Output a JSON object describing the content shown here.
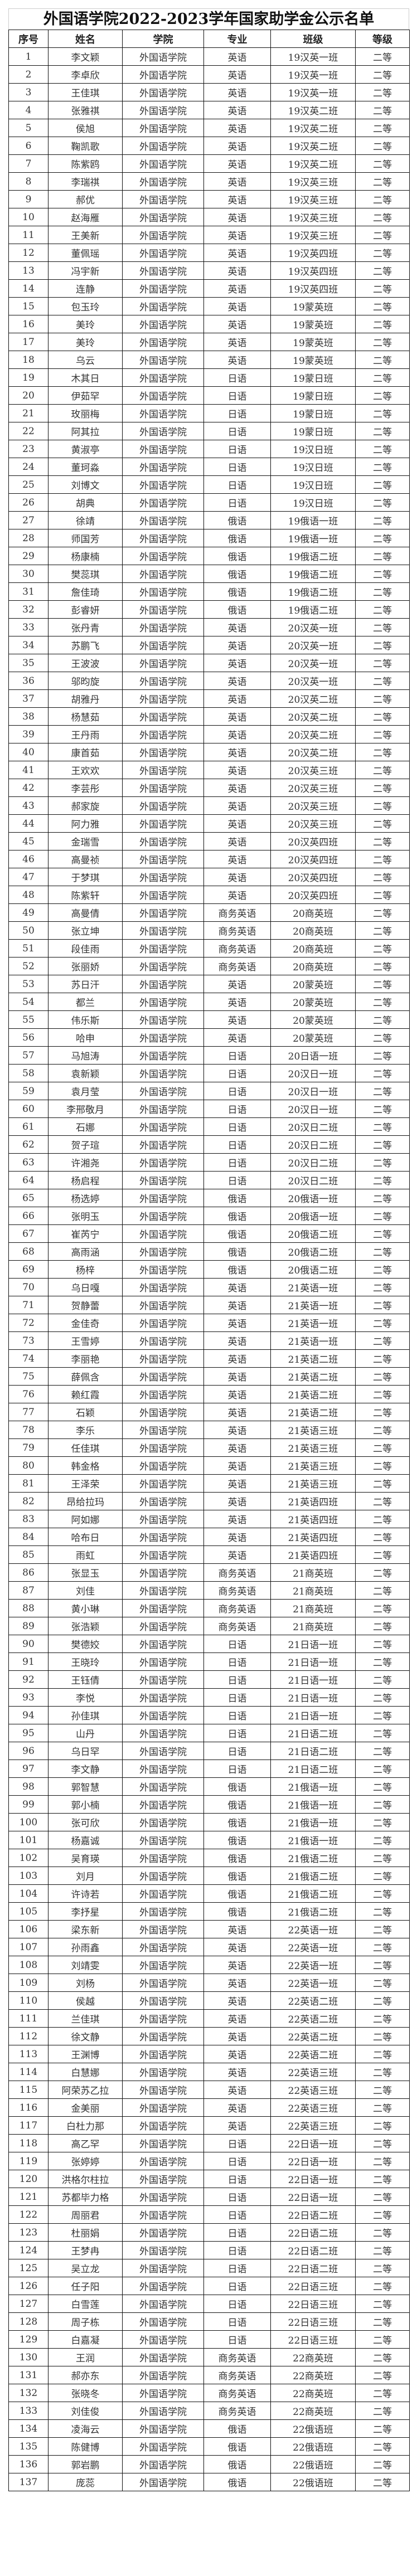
{
  "title": "外国语学院2022-2023学年国家助学金公示名单",
  "columns": [
    "序号",
    "姓名",
    "学院",
    "专业",
    "班级",
    "等级"
  ],
  "rows": [
    [
      "1",
      "李文颖",
      "外国语学院",
      "英语",
      "19汉英一班",
      "二等"
    ],
    [
      "2",
      "李卓欣",
      "外国语学院",
      "英语",
      "19汉英一班",
      "二等"
    ],
    [
      "3",
      "王佳琪",
      "外国语学院",
      "英语",
      "19汉英一班",
      "二等"
    ],
    [
      "4",
      "张雅祺",
      "外国语学院",
      "英语",
      "19汉英二班",
      "二等"
    ],
    [
      "5",
      "侯旭",
      "外国语学院",
      "英语",
      "19汉英二班",
      "二等"
    ],
    [
      "6",
      "鞠凯歌",
      "外国语学院",
      "英语",
      "19汉英二班",
      "二等"
    ],
    [
      "7",
      "陈紫鸥",
      "外国语学院",
      "英语",
      "19汉英二班",
      "二等"
    ],
    [
      "8",
      "李瑞祺",
      "外国语学院",
      "英语",
      "19汉英三班",
      "二等"
    ],
    [
      "9",
      "郝优",
      "外国语学院",
      "英语",
      "19汉英三班",
      "二等"
    ],
    [
      "10",
      "赵海雁",
      "外国语学院",
      "英语",
      "19汉英三班",
      "二等"
    ],
    [
      "11",
      "王美新",
      "外国语学院",
      "英语",
      "19汉英三班",
      "二等"
    ],
    [
      "12",
      "董佩瑶",
      "外国语学院",
      "英语",
      "19汉英四班",
      "二等"
    ],
    [
      "13",
      "冯宇新",
      "外国语学院",
      "英语",
      "19汉英四班",
      "二等"
    ],
    [
      "14",
      "连静",
      "外国语学院",
      "英语",
      "19汉英四班",
      "二等"
    ],
    [
      "15",
      "包玉玲",
      "外国语学院",
      "英语",
      "19蒙英班",
      "二等"
    ],
    [
      "16",
      "美玲",
      "外国语学院",
      "英语",
      "19蒙英班",
      "二等"
    ],
    [
      "17",
      "美玲",
      "外国语学院",
      "英语",
      "19蒙英班",
      "二等"
    ],
    [
      "18",
      "乌云",
      "外国语学院",
      "英语",
      "19蒙英班",
      "二等"
    ],
    [
      "19",
      "木其日",
      "外国语学院",
      "日语",
      "19蒙日班",
      "二等"
    ],
    [
      "20",
      "伊茹罕",
      "外国语学院",
      "日语",
      "19蒙日班",
      "二等"
    ],
    [
      "21",
      "玫丽梅",
      "外国语学院",
      "日语",
      "19蒙日班",
      "二等"
    ],
    [
      "22",
      "阿其拉",
      "外国语学院",
      "日语",
      "19蒙日班",
      "二等"
    ],
    [
      "23",
      "黄淑亭",
      "外国语学院",
      "日语",
      "19汉日班",
      "二等"
    ],
    [
      "24",
      "董珂淼",
      "外国语学院",
      "日语",
      "19汉日班",
      "二等"
    ],
    [
      "25",
      "刘博文",
      "外国语学院",
      "日语",
      "19汉日班",
      "二等"
    ],
    [
      "26",
      "胡典",
      "外国语学院",
      "日语",
      "19汉日班",
      "二等"
    ],
    [
      "27",
      "徐靖",
      "外国语学院",
      "俄语",
      "19俄语一班",
      "二等"
    ],
    [
      "28",
      "师国芳",
      "外国语学院",
      "俄语",
      "19俄语一班",
      "二等"
    ],
    [
      "29",
      "杨康楠",
      "外国语学院",
      "俄语",
      "19俄语二班",
      "二等"
    ],
    [
      "30",
      "樊蕊琪",
      "外国语学院",
      "俄语",
      "19俄语二班",
      "二等"
    ],
    [
      "31",
      "詹佳琦",
      "外国语学院",
      "俄语",
      "19俄语二班",
      "二等"
    ],
    [
      "32",
      "彭睿妍",
      "外国语学院",
      "俄语",
      "19俄语二班",
      "二等"
    ],
    [
      "33",
      "张丹青",
      "外国语学院",
      "英语",
      "20汉英一班",
      "二等"
    ],
    [
      "34",
      "苏鹏飞",
      "外国语学院",
      "英语",
      "20汉英一班",
      "二等"
    ],
    [
      "35",
      "王波波",
      "外国语学院",
      "英语",
      "20汉英一班",
      "二等"
    ],
    [
      "36",
      "邬昀旋",
      "外国语学院",
      "英语",
      "20汉英一班",
      "二等"
    ],
    [
      "37",
      "胡雅丹",
      "外国语学院",
      "英语",
      "20汉英二班",
      "二等"
    ],
    [
      "38",
      "杨慧茹",
      "外国语学院",
      "英语",
      "20汉英二班",
      "二等"
    ],
    [
      "39",
      "王丹雨",
      "外国语学院",
      "英语",
      "20汉英二班",
      "二等"
    ],
    [
      "40",
      "康首茹",
      "外国语学院",
      "英语",
      "20汉英二班",
      "二等"
    ],
    [
      "41",
      "王欢欢",
      "外国语学院",
      "英语",
      "20汉英三班",
      "二等"
    ],
    [
      "42",
      "李芸彤",
      "外国语学院",
      "英语",
      "20汉英三班",
      "二等"
    ],
    [
      "43",
      "郝家旋",
      "外国语学院",
      "英语",
      "20汉英三班",
      "二等"
    ],
    [
      "44",
      "阿力雅",
      "外国语学院",
      "英语",
      "20汉英三班",
      "二等"
    ],
    [
      "45",
      "金瑞雪",
      "外国语学院",
      "英语",
      "20汉英四班",
      "二等"
    ],
    [
      "46",
      "高曼祯",
      "外国语学院",
      "英语",
      "20汉英四班",
      "二等"
    ],
    [
      "47",
      "于梦琪",
      "外国语学院",
      "英语",
      "20汉英四班",
      "二等"
    ],
    [
      "48",
      "陈紫轩",
      "外国语学院",
      "英语",
      "20汉英四班",
      "二等"
    ],
    [
      "49",
      "高曼倩",
      "外国语学院",
      "商务英语",
      "20商英班",
      "二等"
    ],
    [
      "50",
      "张立坤",
      "外国语学院",
      "商务英语",
      "20商英班",
      "二等"
    ],
    [
      "51",
      "段佳雨",
      "外国语学院",
      "商务英语",
      "20商英班",
      "二等"
    ],
    [
      "52",
      "张丽娇",
      "外国语学院",
      "商务英语",
      "20商英班",
      "二等"
    ],
    [
      "53",
      "苏日汗",
      "外国语学院",
      "英语",
      "20蒙英班",
      "二等"
    ],
    [
      "54",
      "都兰",
      "外国语学院",
      "英语",
      "20蒙英班",
      "二等"
    ],
    [
      "55",
      "伟乐斯",
      "外国语学院",
      "英语",
      "20蒙英班",
      "二等"
    ],
    [
      "56",
      "哈申",
      "外国语学院",
      "英语",
      "20蒙英班",
      "二等"
    ],
    [
      "57",
      "马旭涛",
      "外国语学院",
      "日语",
      "20日语一班",
      "二等"
    ],
    [
      "58",
      "袁新颖",
      "外国语学院",
      "日语",
      "20汉日一班",
      "二等"
    ],
    [
      "59",
      "袁月莹",
      "外国语学院",
      "日语",
      "20汉日一班",
      "二等"
    ],
    [
      "60",
      "李邢敬月",
      "外国语学院",
      "日语",
      "20汉日一班",
      "二等"
    ],
    [
      "61",
      "石娜",
      "外国语学院",
      "日语",
      "20汉日二班",
      "二等"
    ],
    [
      "62",
      "贺子瑄",
      "外国语学院",
      "日语",
      "20汉日二班",
      "二等"
    ],
    [
      "63",
      "许湘尧",
      "外国语学院",
      "日语",
      "20汉日二班",
      "二等"
    ],
    [
      "64",
      "杨启程",
      "外国语学院",
      "日语",
      "20汉日二班",
      "二等"
    ],
    [
      "65",
      "杨选婷",
      "外国语学院",
      "俄语",
      "20俄语一班",
      "二等"
    ],
    [
      "66",
      "张明玉",
      "外国语学院",
      "俄语",
      "20俄语一班",
      "二等"
    ],
    [
      "67",
      "崔芮宁",
      "外国语学院",
      "俄语",
      "20俄语二班",
      "二等"
    ],
    [
      "68",
      "高雨涵",
      "外国语学院",
      "俄语",
      "20俄语二班",
      "二等"
    ],
    [
      "69",
      "杨梓",
      "外国语学院",
      "俄语",
      "20俄语二班",
      "二等"
    ],
    [
      "70",
      "乌日嘎",
      "外国语学院",
      "英语",
      "21英语一班",
      "二等"
    ],
    [
      "71",
      "贺静蕾",
      "外国语学院",
      "英语",
      "21英语一班",
      "二等"
    ],
    [
      "72",
      "金佳奇",
      "外国语学院",
      "英语",
      "21英语一班",
      "二等"
    ],
    [
      "73",
      "王雪婷",
      "外国语学院",
      "英语",
      "21英语一班",
      "二等"
    ],
    [
      "74",
      "李丽艳",
      "外国语学院",
      "英语",
      "21英语二班",
      "二等"
    ],
    [
      "75",
      "薛佩含",
      "外国语学院",
      "英语",
      "21英语二班",
      "二等"
    ],
    [
      "76",
      "赖红霞",
      "外国语学院",
      "英语",
      "21英语二班",
      "二等"
    ],
    [
      "77",
      "石颖",
      "外国语学院",
      "英语",
      "21英语二班",
      "二等"
    ],
    [
      "78",
      "李乐",
      "外国语学院",
      "英语",
      "21英语三班",
      "二等"
    ],
    [
      "79",
      "任佳琪",
      "外国语学院",
      "英语",
      "21英语三班",
      "二等"
    ],
    [
      "80",
      "韩金格",
      "外国语学院",
      "英语",
      "21英语三班",
      "二等"
    ],
    [
      "81",
      "王泽荣",
      "外国语学院",
      "英语",
      "21英语三班",
      "二等"
    ],
    [
      "82",
      "昂给拉玛",
      "外国语学院",
      "英语",
      "21英语四班",
      "二等"
    ],
    [
      "83",
      "阿如娜",
      "外国语学院",
      "英语",
      "21英语四班",
      "二等"
    ],
    [
      "84",
      "哈布日",
      "外国语学院",
      "英语",
      "21英语四班",
      "二等"
    ],
    [
      "85",
      "雨虹",
      "外国语学院",
      "英语",
      "21英语四班",
      "二等"
    ],
    [
      "86",
      "张显玉",
      "外国语学院",
      "商务英语",
      "21商英班",
      "二等"
    ],
    [
      "87",
      "刘佳",
      "外国语学院",
      "商务英语",
      "21商英班",
      "二等"
    ],
    [
      "88",
      "黄小琳",
      "外国语学院",
      "商务英语",
      "21商英班",
      "二等"
    ],
    [
      "89",
      "张浩颖",
      "外国语学院",
      "商务英语",
      "21商英班",
      "二等"
    ],
    [
      "90",
      "樊德姣",
      "外国语学院",
      "日语",
      "21日语一班",
      "二等"
    ],
    [
      "91",
      "王晓玲",
      "外国语学院",
      "日语",
      "21日语一班",
      "二等"
    ],
    [
      "92",
      "王钰倩",
      "外国语学院",
      "日语",
      "21日语一班",
      "二等"
    ],
    [
      "93",
      "李悦",
      "外国语学院",
      "日语",
      "21日语一班",
      "二等"
    ],
    [
      "94",
      "孙佳琪",
      "外国语学院",
      "日语",
      "21日语一班",
      "二等"
    ],
    [
      "95",
      "山丹",
      "外国语学院",
      "日语",
      "21日语二班",
      "二等"
    ],
    [
      "96",
      "乌日罕",
      "外国语学院",
      "日语",
      "21日语二班",
      "二等"
    ],
    [
      "97",
      "李文静",
      "外国语学院",
      "日语",
      "21日语二班",
      "二等"
    ],
    [
      "98",
      "郭智慧",
      "外国语学院",
      "俄语",
      "21俄语一班",
      "二等"
    ],
    [
      "99",
      "郭小楠",
      "外国语学院",
      "俄语",
      "21俄语一班",
      "二等"
    ],
    [
      "100",
      "张可欣",
      "外国语学院",
      "俄语",
      "21俄语一班",
      "二等"
    ],
    [
      "101",
      "杨嘉诚",
      "外国语学院",
      "俄语",
      "21俄语一班",
      "二等"
    ],
    [
      "102",
      "吴育瑛",
      "外国语学院",
      "俄语",
      "21俄语二班",
      "二等"
    ],
    [
      "103",
      "刘月",
      "外国语学院",
      "俄语",
      "21俄语二班",
      "二等"
    ],
    [
      "104",
      "许诗若",
      "外国语学院",
      "俄语",
      "21俄语二班",
      "二等"
    ],
    [
      "105",
      "李抒星",
      "外国语学院",
      "俄语",
      "21俄语二班",
      "二等"
    ],
    [
      "106",
      "梁东新",
      "外国语学院",
      "英语",
      "22英语一班",
      "二等"
    ],
    [
      "107",
      "孙雨鑫",
      "外国语学院",
      "英语",
      "22英语一班",
      "二等"
    ],
    [
      "108",
      "刘靖雯",
      "外国语学院",
      "英语",
      "22英语一班",
      "二等"
    ],
    [
      "109",
      "刘杨",
      "外国语学院",
      "英语",
      "22英语一班",
      "二等"
    ],
    [
      "110",
      "侯越",
      "外国语学院",
      "英语",
      "22英语二班",
      "二等"
    ],
    [
      "111",
      "兰佳琪",
      "外国语学院",
      "英语",
      "22英语二班",
      "二等"
    ],
    [
      "112",
      "徐文静",
      "外国语学院",
      "英语",
      "22英语二班",
      "二等"
    ],
    [
      "113",
      "王渊博",
      "外国语学院",
      "英语",
      "22英语二班",
      "二等"
    ],
    [
      "114",
      "白慧娜",
      "外国语学院",
      "英语",
      "22英语三班",
      "二等"
    ],
    [
      "115",
      "阿荣苏乙拉",
      "外国语学院",
      "英语",
      "22英语三班",
      "二等"
    ],
    [
      "116",
      "金美丽",
      "外国语学院",
      "英语",
      "22英语三班",
      "二等"
    ],
    [
      "117",
      "白杜力那",
      "外国语学院",
      "英语",
      "22英语三班",
      "二等"
    ],
    [
      "118",
      "高乙罕",
      "外国语学院",
      "日语",
      "22日语一班",
      "二等"
    ],
    [
      "119",
      "张婷婷",
      "外国语学院",
      "日语",
      "22日语一班",
      "二等"
    ],
    [
      "120",
      "洪格尔柱拉",
      "外国语学院",
      "日语",
      "22日语一班",
      "二等"
    ],
    [
      "121",
      "苏都毕力格",
      "外国语学院",
      "日语",
      "22日语一班",
      "二等"
    ],
    [
      "122",
      "周丽君",
      "外国语学院",
      "日语",
      "22日语二班",
      "二等"
    ],
    [
      "123",
      "杜丽娟",
      "外国语学院",
      "日语",
      "22日语二班",
      "二等"
    ],
    [
      "124",
      "王梦冉",
      "外国语学院",
      "日语",
      "22日语二班",
      "二等"
    ],
    [
      "125",
      "吴立龙",
      "外国语学院",
      "日语",
      "22日语二班",
      "二等"
    ],
    [
      "126",
      "任子阳",
      "外国语学院",
      "日语",
      "22日语三班",
      "二等"
    ],
    [
      "127",
      "白雪莲",
      "外国语学院",
      "日语",
      "22日语三班",
      "二等"
    ],
    [
      "128",
      "周子栋",
      "外国语学院",
      "日语",
      "22日语三班",
      "二等"
    ],
    [
      "129",
      "白嘉凝",
      "外国语学院",
      "日语",
      "22日语三班",
      "二等"
    ],
    [
      "130",
      "王润",
      "外国语学院",
      "商务英语",
      "22商英班",
      "二等"
    ],
    [
      "131",
      "郝亦东",
      "外国语学院",
      "商务英语",
      "22商英班",
      "二等"
    ],
    [
      "132",
      "张晓冬",
      "外国语学院",
      "商务英语",
      "22商英班",
      "二等"
    ],
    [
      "133",
      "刘佳俊",
      "外国语学院",
      "商务英语",
      "22商英班",
      "二等"
    ],
    [
      "134",
      "凌海云",
      "外国语学院",
      "俄语",
      "22俄语班",
      "二等"
    ],
    [
      "135",
      "陈健博",
      "外国语学院",
      "俄语",
      "22俄语班",
      "二等"
    ],
    [
      "136",
      "郭岩鹏",
      "外国语学院",
      "俄语",
      "22俄语班",
      "二等"
    ],
    [
      "137",
      "庞蕊",
      "外国语学院",
      "俄语",
      "22俄语班",
      "二等"
    ]
  ]
}
